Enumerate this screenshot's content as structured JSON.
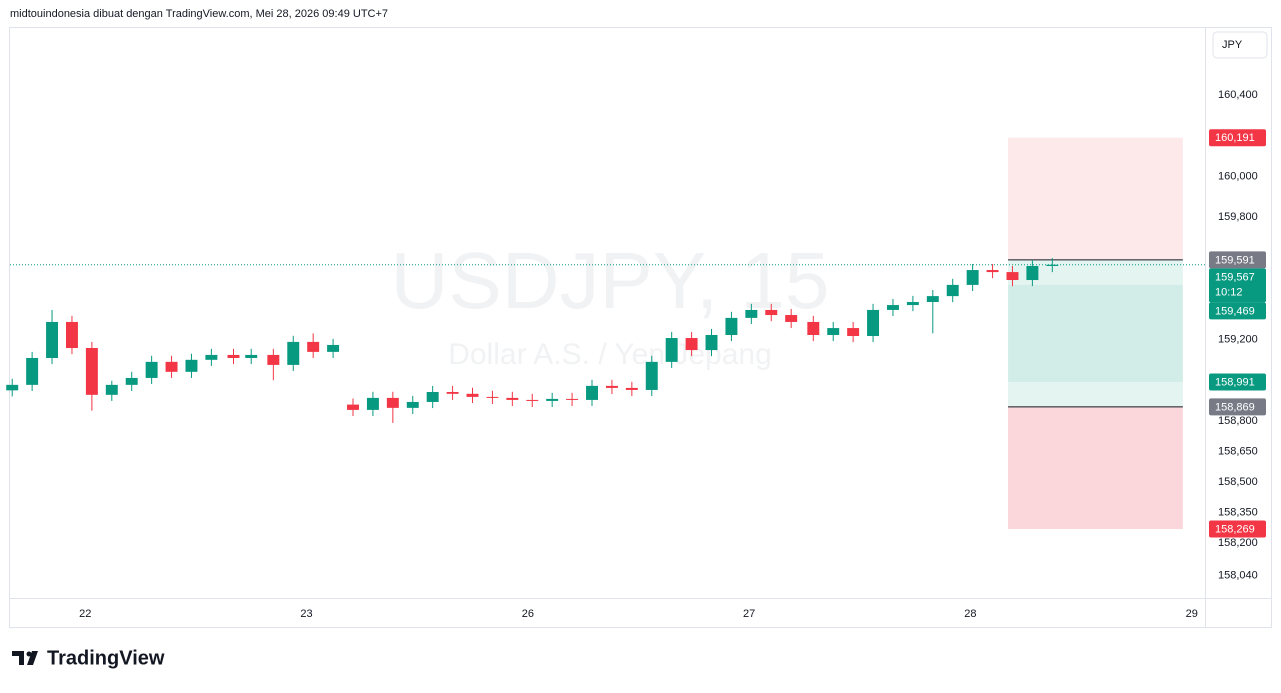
{
  "header": "midtouindonesia dibuat dengan TradingView.com, Mei 28, 2026 09:49 UTC+7",
  "footer_logo": "TradingView",
  "chart_data": {
    "type": "candlestick",
    "symbol_watermark": "USDJPY, 15",
    "description_watermark": "Dollar A.S. / Yen Jepang",
    "currency": "JPY",
    "x": [
      -0.33,
      -0.24,
      -0.15,
      -0.06,
      0.03,
      0.12,
      0.21,
      0.3,
      0.39,
      0.48,
      0.57,
      0.67,
      0.75,
      0.85,
      0.94,
      1.03,
      1.12,
      1.21,
      1.3,
      1.39,
      1.48,
      1.57,
      1.66,
      1.75,
      1.84,
      1.93,
      2.02,
      2.11,
      2.2,
      2.29,
      2.38,
      2.47,
      2.56,
      2.65,
      2.74,
      2.83,
      2.92,
      3.01,
      3.1,
      3.19,
      3.29,
      3.38,
      3.47,
      3.56,
      3.65,
      3.74,
      3.83,
      3.92,
      4.01,
      4.1,
      4.19,
      4.28,
      4.37
    ],
    "open": [
      158.95,
      158.977,
      159.109,
      159.286,
      159.158,
      158.928,
      158.977,
      159.011,
      159.09,
      159.041,
      159.1,
      159.124,
      159.109,
      159.124,
      159.075,
      159.188,
      159.139,
      158.88,
      158.854,
      158.913,
      158.864,
      158.893,
      158.942,
      158.933,
      158.918,
      158.913,
      158.903,
      158.898,
      158.908,
      158.903,
      158.972,
      158.962,
      158.952,
      159.09,
      159.207,
      159.148,
      159.222,
      159.306,
      159.345,
      159.32,
      159.286,
      159.222,
      159.256,
      159.217,
      159.345,
      159.369,
      159.384,
      159.413,
      159.468,
      159.541,
      159.531,
      159.492,
      159.561
    ],
    "high": [
      159.007,
      159.139,
      159.345,
      159.316,
      159.188,
      158.997,
      159.041,
      159.12,
      159.12,
      159.13,
      159.154,
      159.154,
      159.154,
      159.154,
      159.218,
      159.23,
      159.203,
      158.91,
      158.943,
      158.943,
      158.923,
      158.972,
      158.972,
      158.963,
      158.948,
      158.943,
      158.933,
      158.938,
      158.938,
      159.002,
      159.002,
      158.992,
      159.12,
      159.237,
      159.237,
      159.252,
      159.336,
      159.375,
      159.375,
      159.35,
      159.316,
      159.286,
      159.286,
      159.375,
      159.399,
      159.414,
      159.443,
      159.498,
      159.571,
      159.571,
      159.561,
      159.591,
      159.6
    ],
    "low": [
      158.92,
      158.947,
      159.079,
      159.128,
      158.85,
      158.898,
      158.947,
      158.981,
      159.011,
      159.011,
      159.07,
      159.079,
      159.079,
      159.0,
      159.045,
      159.109,
      159.109,
      158.824,
      158.824,
      158.79,
      158.834,
      158.863,
      158.903,
      158.888,
      158.883,
      158.873,
      158.868,
      158.868,
      158.873,
      158.873,
      158.932,
      158.922,
      158.922,
      159.06,
      159.118,
      159.118,
      159.192,
      159.276,
      159.29,
      159.256,
      159.192,
      159.192,
      159.187,
      159.187,
      159.315,
      159.339,
      159.23,
      159.383,
      159.438,
      159.501,
      159.462,
      159.462,
      159.531
    ],
    "close": [
      158.977,
      159.109,
      159.286,
      159.158,
      158.928,
      158.977,
      159.011,
      159.09,
      159.041,
      159.1,
      159.124,
      159.109,
      159.124,
      159.075,
      159.188,
      159.139,
      159.173,
      158.854,
      158.913,
      158.864,
      158.893,
      158.942,
      158.933,
      158.918,
      158.913,
      158.903,
      158.898,
      158.908,
      158.903,
      158.972,
      158.962,
      158.952,
      159.09,
      159.207,
      159.148,
      159.222,
      159.306,
      159.345,
      159.32,
      159.286,
      159.222,
      159.256,
      159.217,
      159.345,
      159.369,
      159.384,
      159.413,
      159.468,
      159.541,
      159.531,
      159.492,
      159.561,
      159.567
    ],
    "up_color": "#089981",
    "down_color": "#f23645",
    "xlim": [
      -0.34,
      5.06
    ],
    "xticks": [
      {
        "value": 0,
        "label": "22"
      },
      {
        "value": 1,
        "label": "23"
      },
      {
        "value": 2,
        "label": "26"
      },
      {
        "value": 3,
        "label": "27"
      },
      {
        "value": 4,
        "label": "28"
      },
      {
        "value": 5,
        "label": "29"
      }
    ],
    "ylim": [
      157.93,
      160.73
    ],
    "yticks": [
      {
        "value": 160.4,
        "label": "160,400"
      },
      {
        "value": 160.0,
        "label": "160,000"
      },
      {
        "value": 159.8,
        "label": "159,800"
      },
      {
        "value": 159.2,
        "label": "159,200"
      },
      {
        "value": 158.8,
        "label": "158,800"
      },
      {
        "value": 158.65,
        "label": "158,650"
      },
      {
        "value": 158.5,
        "label": "158,500"
      },
      {
        "value": 158.35,
        "label": "158,350"
      },
      {
        "value": 158.2,
        "label": "158,200"
      },
      {
        "value": 158.04,
        "label": "158,040"
      }
    ],
    "grid": false,
    "last_price": {
      "value": 159.567,
      "label": "159,567",
      "countdown": "10:12",
      "color": "#089981"
    },
    "position": {
      "x_range": [
        4.17,
        4.96
      ],
      "levels": [
        {
          "value": 160.191,
          "label": "160,191",
          "color": "#f23645"
        },
        {
          "value": 159.591,
          "label": "159,591",
          "color": "#787b86",
          "line": true
        },
        {
          "value": 159.469,
          "label": "159,469",
          "color": "#089981"
        },
        {
          "value": 158.991,
          "label": "158,991",
          "color": "#089981"
        },
        {
          "value": 158.869,
          "label": "158,869",
          "color": "#787b86",
          "line": true
        },
        {
          "value": 158.269,
          "label": "158,269",
          "color": "#f23645"
        }
      ],
      "zone_colors": [
        "#fde9ea",
        "#e4f4f0",
        "#d2ede7",
        "#e4f4f0",
        "#fbd7db"
      ]
    }
  }
}
